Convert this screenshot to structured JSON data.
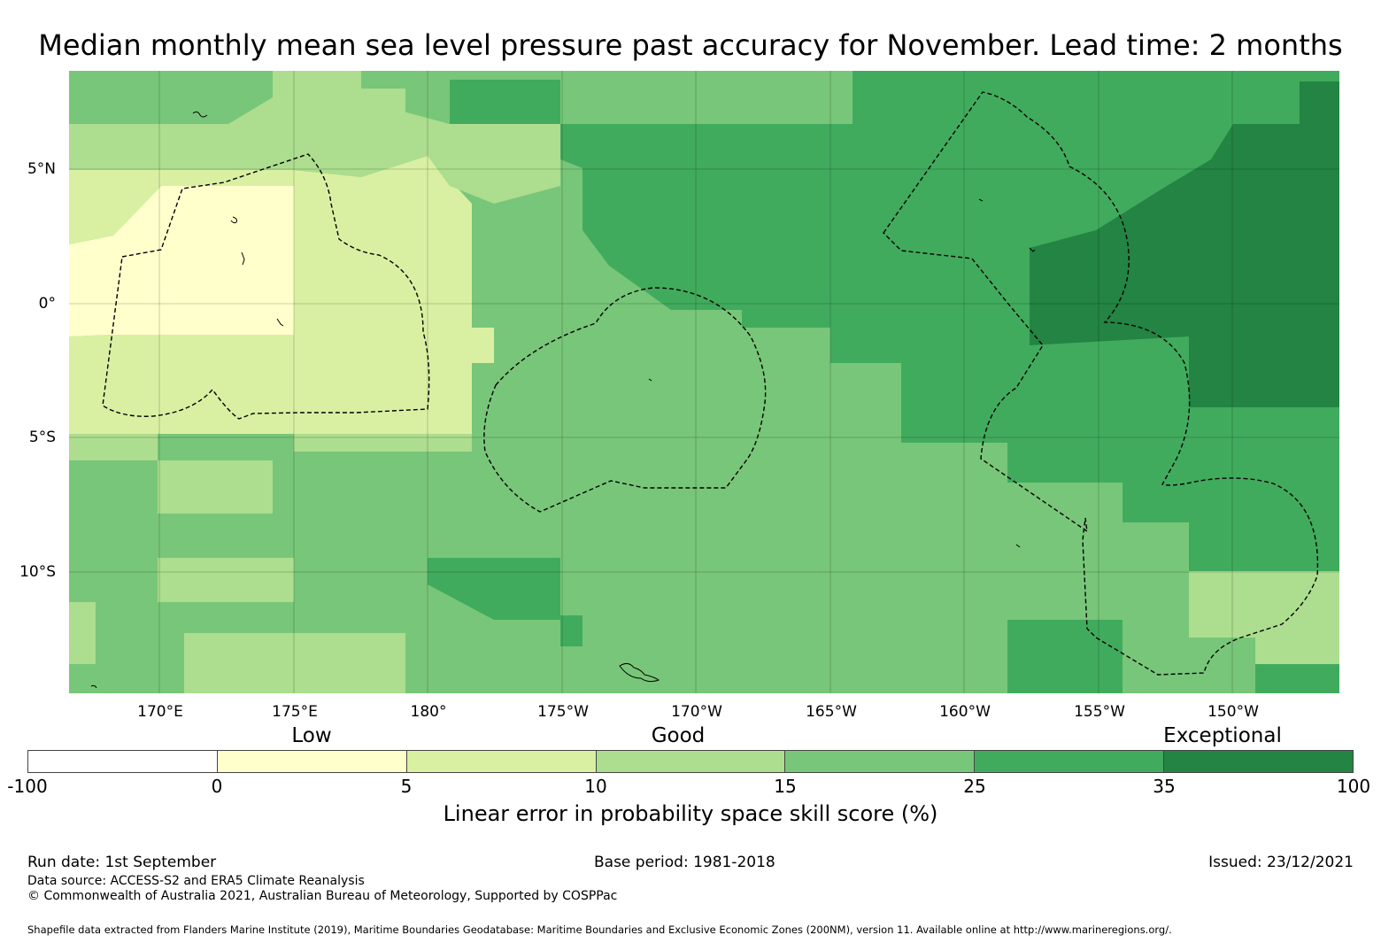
{
  "title": "Median monthly mean sea level pressure past accuracy for November. Lead time: 2 months",
  "map": {
    "longitude_labels": [
      "170°E",
      "175°E",
      "180°",
      "175°W",
      "170°W",
      "165°W",
      "160°W",
      "155°W",
      "150°W"
    ],
    "latitude_labels": [
      "5°N",
      "0°",
      "5°S",
      "10°S"
    ]
  },
  "legend": {
    "categories": [
      "Low",
      "Good",
      "Exceptional"
    ],
    "ticks": [
      "-100",
      "0",
      "5",
      "10",
      "15",
      "25",
      "35",
      "100"
    ],
    "colors": [
      "#ffffff",
      "#ffffcc",
      "#d9f0a3",
      "#addd8e",
      "#78c679",
      "#41ab5d",
      "#238443"
    ],
    "label": "Linear error in probability space skill score (%)"
  },
  "footer": {
    "run_date": "Run date: 1st September",
    "base_period": "Base period: 1981-2018",
    "issued": "Issued: 23/12/2021",
    "data_source": "Data source: ACCESS-S2 and ERA5 Climate Reanalysis",
    "copyright": "© Commonwealth of Australia 2021, Australian Bureau of Meteorology, Supported by COSPPac",
    "shapefile": "Shapefile data extracted from Flanders Marine Institute (2019), Maritime Boundaries Geodatabase: Maritime Boundaries and Exclusive Economic Zones (200NM), version 11. Available online at http://www.marineregions.org/."
  }
}
